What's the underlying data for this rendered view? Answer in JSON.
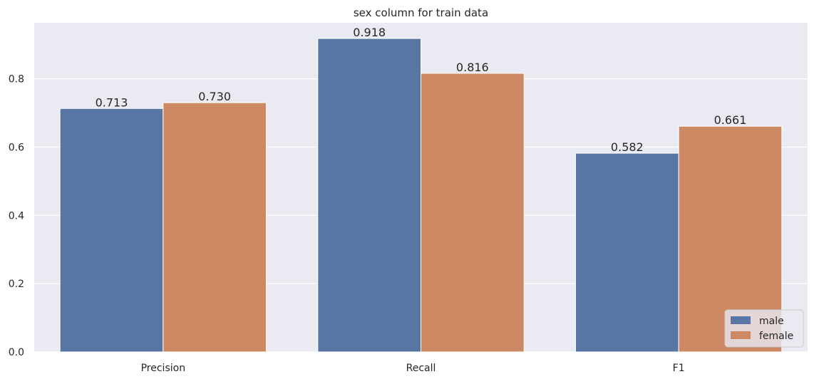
{
  "chart_data": {
    "type": "bar",
    "title": "sex column for train data",
    "xlabel": "",
    "ylabel": "",
    "categories": [
      "Precision",
      "Recall",
      "F1"
    ],
    "series": [
      {
        "name": "male",
        "values": [
          0.713,
          0.918,
          0.582
        ],
        "labels": [
          "0.713",
          "0.918",
          "0.582"
        ],
        "color": "#5875a4"
      },
      {
        "name": "female",
        "values": [
          0.73,
          0.816,
          0.661
        ],
        "labels": [
          "0.730",
          "0.816",
          "0.661"
        ],
        "color": "#cc8963"
      }
    ],
    "ylim": [
      0,
      0.964
    ],
    "yticks": [
      0.0,
      0.2,
      0.4,
      0.6,
      0.8
    ],
    "ytick_labels": [
      "0.0",
      "0.2",
      "0.4",
      "0.6",
      "0.8"
    ],
    "grid": true,
    "legend_position": "lower-right",
    "background_color": "#eaeaf2"
  }
}
